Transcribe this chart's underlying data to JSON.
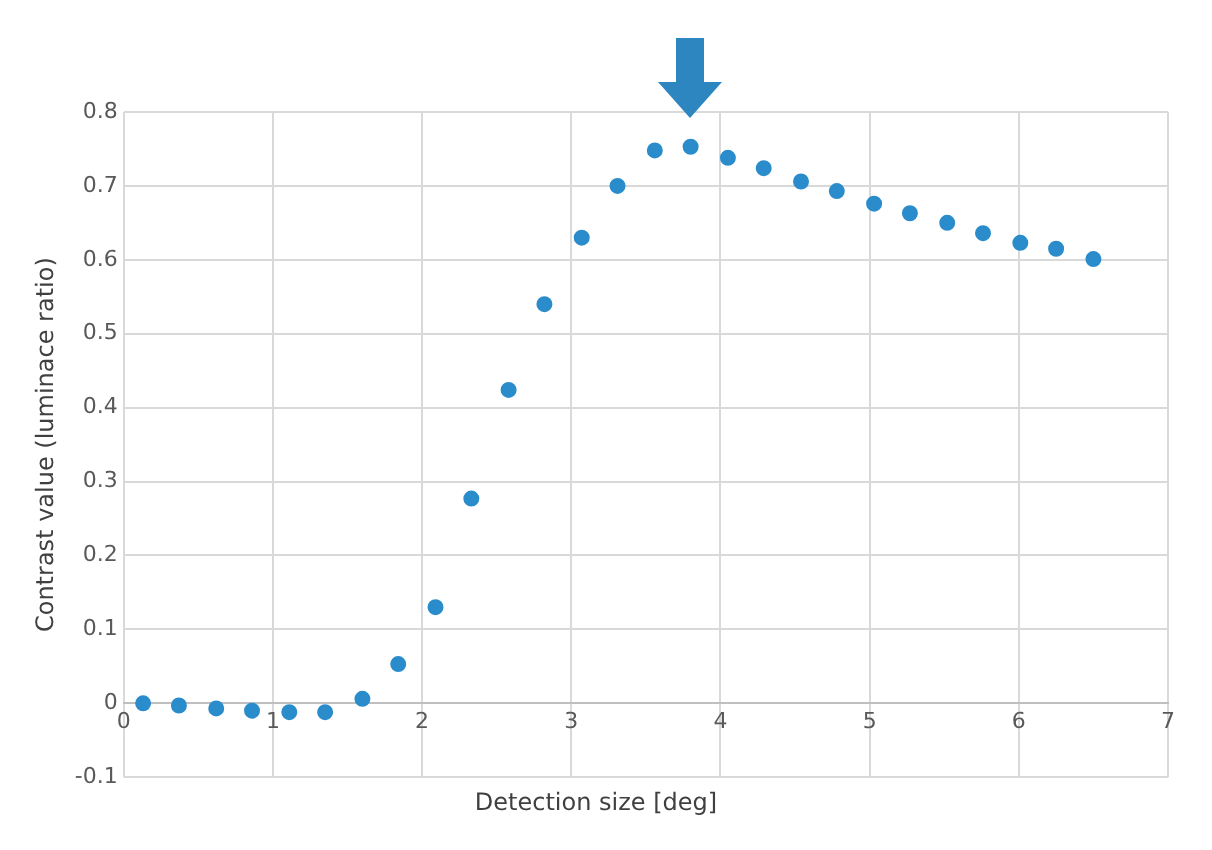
{
  "chart_data": {
    "type": "scatter",
    "xlabel": "Detection size [deg]",
    "ylabel": "Contrast value (luminace ratio)",
    "x": [
      0.13,
      0.37,
      0.62,
      0.86,
      1.11,
      1.35,
      1.6,
      1.84,
      2.09,
      2.33,
      2.58,
      2.82,
      3.07,
      3.31,
      3.56,
      3.8,
      4.05,
      4.29,
      4.54,
      4.78,
      5.03,
      5.27,
      5.52,
      5.76,
      6.01,
      6.25,
      6.5
    ],
    "series": [
      {
        "color": "#2a8ccb",
        "values": [
          0.0,
          -0.003,
          -0.007,
          -0.01,
          -0.012,
          -0.012,
          0.006,
          0.053,
          0.13,
          0.277,
          0.424,
          0.54,
          0.63,
          0.7,
          0.748,
          0.753,
          0.738,
          0.724,
          0.706,
          0.693,
          0.676,
          0.663,
          0.65,
          0.636,
          0.623,
          0.615,
          0.601
        ]
      }
    ],
    "xlim": [
      0,
      7
    ],
    "xticks": [
      0,
      1,
      2,
      3,
      4,
      5,
      6,
      7
    ],
    "ylim": [
      -0.1,
      0.8
    ],
    "yticks": [
      -0.1,
      0,
      0.1,
      0.2,
      0.3,
      0.4,
      0.5,
      0.6,
      0.7,
      0.8
    ],
    "grid": true,
    "marker": "circle",
    "legend": false
  }
}
